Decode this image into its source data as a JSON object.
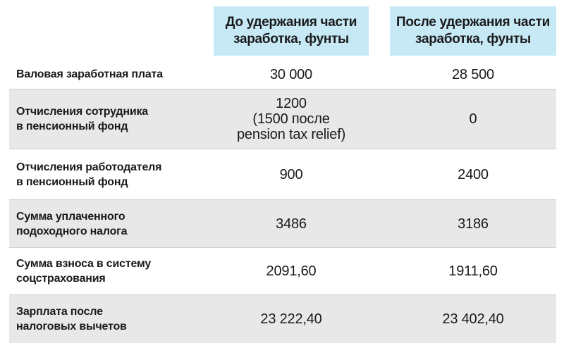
{
  "header": {
    "col1": "До удержания части\nзаработка, фунты",
    "col2": "После удержания части\nзаработка, фунты"
  },
  "rows": [
    {
      "label": "Валовая заработная плата",
      "v1": "30 000",
      "v2": "28 500"
    },
    {
      "label": "Отчисления сотрудника\nв пенсионный фонд",
      "v1": "1200\n(1500 после\npension tax relief)",
      "v2": "0"
    },
    {
      "label": "Отчисления работодателя\nв пенсионный фонд",
      "v1": "900",
      "v2": "2400"
    },
    {
      "label": "Сумма уплаченного\nподоходного налога",
      "v1": "3486",
      "v2": "3186"
    },
    {
      "label": "Сумма взноса в систему\nсоцстрахования",
      "v1": "2091,60",
      "v2": "1911,60"
    },
    {
      "label": "Зарплата после\nналоговых вычетов",
      "v1": "23 222,40",
      "v2": "23 402,40"
    }
  ],
  "colors": {
    "header_bg": "#c6e9f5",
    "shaded_row_bg": "#e8e8e8"
  }
}
